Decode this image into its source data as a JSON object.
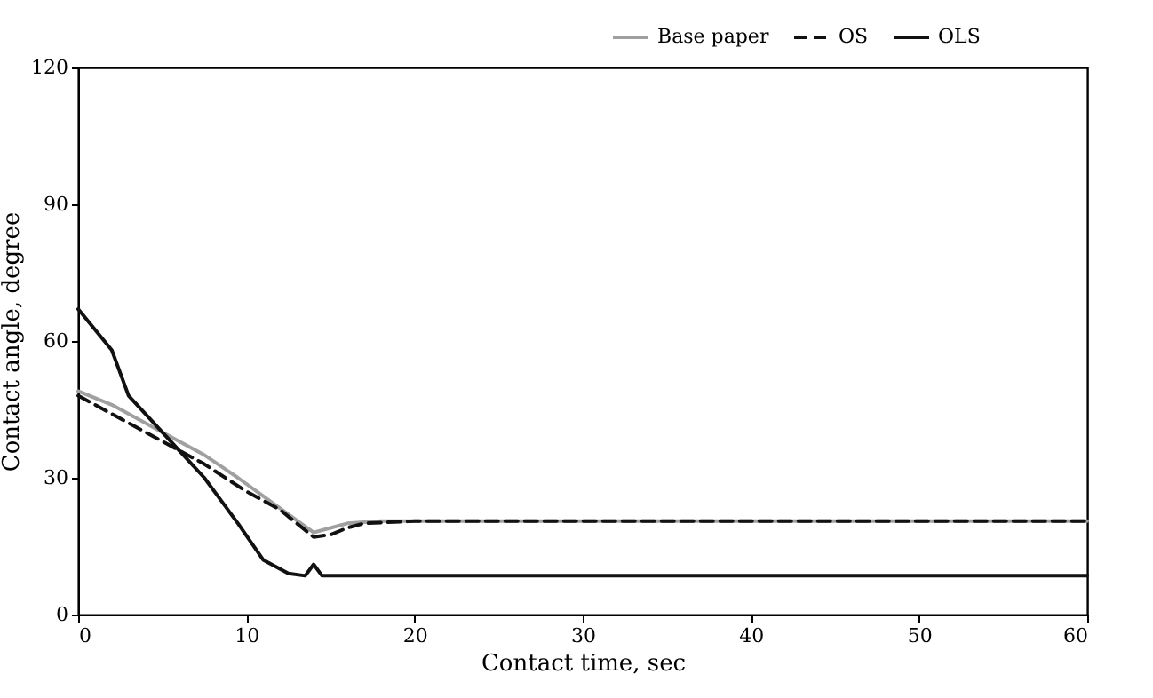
{
  "chart_data": {
    "type": "line",
    "xlabel": "Contact time, sec",
    "ylabel": "Contact angle, degree",
    "xlim": [
      0,
      60
    ],
    "ylim": [
      0,
      120
    ],
    "xticks": [
      0,
      10,
      20,
      30,
      40,
      50,
      60
    ],
    "yticks": [
      0,
      30,
      60,
      90,
      120
    ],
    "grid": false,
    "legend": "top right",
    "series": [
      {
        "name": "Base paper",
        "color": "#a0a0a0",
        "line_style": "solid",
        "x": [
          0,
          2,
          5,
          7.5,
          9.5,
          11,
          12.5,
          14,
          15,
          16,
          18,
          25,
          40,
          60
        ],
        "values": [
          49,
          46,
          40,
          35,
          30,
          26,
          22,
          18,
          19,
          20,
          20.5,
          20.5,
          20.5,
          20.5
        ]
      },
      {
        "name": "OS",
        "color": "#111111",
        "line_style": "dashed",
        "x": [
          0,
          2,
          5,
          7.5,
          10,
          12,
          13,
          14,
          15,
          16,
          17,
          20,
          40,
          60
        ],
        "values": [
          48,
          44,
          38,
          33,
          27,
          23,
          20,
          17,
          17.5,
          19,
          20,
          20.5,
          20.5,
          20.5
        ]
      },
      {
        "name": "OLS",
        "color": "#111111",
        "line_style": "solid",
        "x": [
          0,
          2,
          3,
          5,
          7.5,
          9.5,
          11,
          12.5,
          13.5,
          14,
          14.5,
          20,
          40,
          60
        ],
        "values": [
          67,
          58,
          48,
          40,
          30,
          20,
          12,
          9,
          8.5,
          11,
          8.5,
          8.5,
          8.5,
          8.5
        ]
      }
    ]
  }
}
